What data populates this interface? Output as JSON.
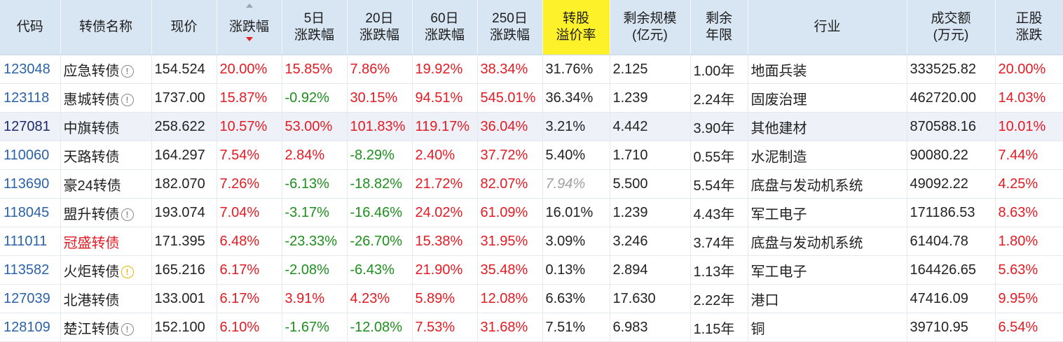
{
  "columns": [
    {
      "key": "code",
      "line1": "代码",
      "line2": ""
    },
    {
      "key": "name",
      "line1": "转债名称",
      "line2": ""
    },
    {
      "key": "price",
      "line1": "现价",
      "line2": ""
    },
    {
      "key": "chg",
      "line1": "涨跌幅",
      "line2": ""
    },
    {
      "key": "chg5",
      "line1": "5日",
      "line2": "涨跌幅"
    },
    {
      "key": "chg20",
      "line1": "20日",
      "line2": "涨跌幅"
    },
    {
      "key": "chg60",
      "line1": "60日",
      "line2": "涨跌幅"
    },
    {
      "key": "chg250",
      "line1": "250日",
      "line2": "涨跌幅"
    },
    {
      "key": "premium",
      "line1": "转股",
      "line2": "溢价率"
    },
    {
      "key": "scale",
      "line1": "剩余规模",
      "line2": "(亿元)"
    },
    {
      "key": "years",
      "line1": "剩余",
      "line2": "年限"
    },
    {
      "key": "industry",
      "line1": "行业",
      "line2": ""
    },
    {
      "key": "volume",
      "line1": "成交额",
      "line2": "(万元)"
    },
    {
      "key": "stockchg",
      "line1": "正股",
      "line2": "涨跌"
    }
  ],
  "sort": {
    "column": "chg",
    "direction": "desc"
  },
  "highlight_column_color": "#fdf12a",
  "colors": {
    "up": "#e31b23",
    "down": "#1d8f1d",
    "code": "#2b62a8",
    "header_bg": "#d8e5f2"
  },
  "rows": [
    {
      "code": "123048",
      "name": "应急转债",
      "icon": "info",
      "name_red": false,
      "price": "154.524",
      "chg": "20.00%",
      "chg5": "15.85%",
      "chg20": "7.86%",
      "chg60": "19.92%",
      "chg250": "38.34%",
      "premium": "31.76%",
      "premium_grey": false,
      "scale": "2.125",
      "years": "1.00年",
      "industry": "地面兵装",
      "volume": "333525.82",
      "stockchg": "20.00%"
    },
    {
      "code": "123118",
      "name": "惠城转债",
      "icon": "info",
      "name_red": false,
      "price": "1737.00",
      "chg": "15.87%",
      "chg5": "-0.92%",
      "chg20": "30.15%",
      "chg60": "94.51%",
      "chg250": "545.01%",
      "premium": "36.34%",
      "premium_grey": false,
      "scale": "1.239",
      "years": "2.24年",
      "industry": "固废治理",
      "volume": "462720.00",
      "stockchg": "14.03%"
    },
    {
      "code": "127081",
      "name": "中旗转债",
      "icon": "",
      "name_red": false,
      "price": "258.622",
      "chg": "10.57%",
      "chg5": "53.00%",
      "chg20": "101.83%",
      "chg60": "119.17%",
      "chg250": "36.04%",
      "premium": "3.21%",
      "premium_grey": false,
      "scale": "4.442",
      "years": "3.90年",
      "industry": "其他建材",
      "volume": "870588.16",
      "stockchg": "10.01%"
    },
    {
      "code": "110060",
      "name": "天路转债",
      "icon": "",
      "name_red": false,
      "price": "164.297",
      "chg": "7.54%",
      "chg5": "2.84%",
      "chg20": "-8.29%",
      "chg60": "2.40%",
      "chg250": "37.72%",
      "premium": "5.40%",
      "premium_grey": false,
      "scale": "1.710",
      "years": "0.55年",
      "industry": "水泥制造",
      "volume": "90080.22",
      "stockchg": "7.44%"
    },
    {
      "code": "113690",
      "name": "豪24转债",
      "icon": "",
      "name_red": false,
      "price": "182.070",
      "chg": "7.26%",
      "chg5": "-6.13%",
      "chg20": "-18.82%",
      "chg60": "21.72%",
      "chg250": "82.07%",
      "premium": "7.94%",
      "premium_grey": true,
      "scale": "5.500",
      "years": "5.54年",
      "industry": "底盘与发动机系统",
      "volume": "49092.22",
      "stockchg": "4.25%"
    },
    {
      "code": "118045",
      "name": "盟升转债",
      "icon": "info",
      "name_red": false,
      "price": "193.074",
      "chg": "7.04%",
      "chg5": "-3.17%",
      "chg20": "-16.46%",
      "chg60": "24.02%",
      "chg250": "61.09%",
      "premium": "16.01%",
      "premium_grey": false,
      "scale": "1.239",
      "years": "4.43年",
      "industry": "军工电子",
      "volume": "171186.53",
      "stockchg": "8.63%"
    },
    {
      "code": "111011",
      "name": "冠盛转债",
      "icon": "",
      "name_red": true,
      "price": "171.395",
      "chg": "6.48%",
      "chg5": "-23.33%",
      "chg20": "-26.70%",
      "chg60": "15.38%",
      "chg250": "31.95%",
      "premium": "3.09%",
      "premium_grey": false,
      "scale": "3.246",
      "years": "3.74年",
      "industry": "底盘与发动机系统",
      "volume": "61404.78",
      "stockchg": "1.80%"
    },
    {
      "code": "113582",
      "name": "火炬转债",
      "icon": "warn",
      "name_red": false,
      "price": "165.216",
      "chg": "6.17%",
      "chg5": "-2.08%",
      "chg20": "-6.43%",
      "chg60": "21.90%",
      "chg250": "35.48%",
      "premium": "0.13%",
      "premium_grey": false,
      "scale": "2.894",
      "years": "1.13年",
      "industry": "军工电子",
      "volume": "164426.65",
      "stockchg": "5.63%"
    },
    {
      "code": "127039",
      "name": "北港转债",
      "icon": "",
      "name_red": false,
      "price": "133.001",
      "chg": "6.17%",
      "chg5": "3.91%",
      "chg20": "4.23%",
      "chg60": "5.89%",
      "chg250": "12.08%",
      "premium": "6.63%",
      "premium_grey": false,
      "scale": "17.630",
      "years": "2.22年",
      "industry": "港口",
      "volume": "47416.09",
      "stockchg": "9.95%"
    },
    {
      "code": "128109",
      "name": "楚江转债",
      "icon": "info",
      "name_red": false,
      "price": "152.100",
      "chg": "6.10%",
      "chg5": "-1.67%",
      "chg20": "-12.08%",
      "chg60": "7.53%",
      "chg250": "31.68%",
      "premium": "7.51%",
      "premium_grey": false,
      "scale": "6.983",
      "years": "1.15年",
      "industry": "铜",
      "volume": "39710.95",
      "stockchg": "6.54%"
    }
  ]
}
